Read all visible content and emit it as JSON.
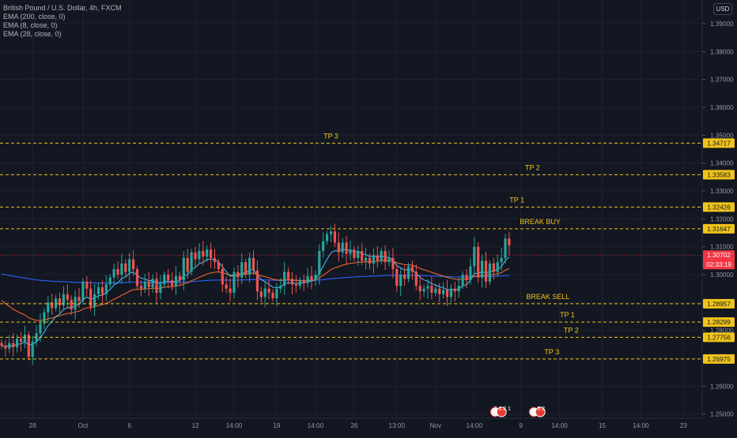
{
  "header": {
    "symbol": "British Pound / U.S. Dollar, 4h, FXCM",
    "indicators": [
      "EMA (200, close, 0)",
      "EMA (8, close, 0)",
      "EMA (28, close, 0)"
    ],
    "currency": "USD"
  },
  "colors": {
    "background": "#131722",
    "up_candle": "#26a69a",
    "down_candle": "#ef5350",
    "level_line": "#f0c419",
    "level_label": "#f0c419",
    "ema200": "#2962ff",
    "ema8": "#4fc3f7",
    "ema28": "#ff6d2d",
    "price_tag": "#f23645"
  },
  "chart_data": {
    "type": "candlestick",
    "ylim": [
      1.2485,
      1.3985
    ],
    "y_ticks": [
      "1.25000",
      "1.26000",
      "1.27000",
      "1.28000",
      "1.29000",
      "1.30000",
      "1.31000",
      "1.32000",
      "1.33000",
      "1.34000",
      "1.35000",
      "1.36000",
      "1.37000",
      "1.38000",
      "1.39000"
    ],
    "x_ticks": [
      {
        "label": "28",
        "idx": 8
      },
      {
        "label": "Oct",
        "idx": 21
      },
      {
        "label": "6",
        "idx": 33
      },
      {
        "label": "12",
        "idx": 50
      },
      {
        "label": "14:00",
        "idx": 60
      },
      {
        "label": "19",
        "idx": 71
      },
      {
        "label": "14:00",
        "idx": 81
      },
      {
        "label": "26",
        "idx": 91
      },
      {
        "label": "13:00",
        "idx": 102
      },
      {
        "label": "Nov",
        "idx": 112
      },
      {
        "label": "14:00",
        "idx": 122
      },
      {
        "label": "9",
        "idx": 134
      },
      {
        "label": "14:00",
        "idx": 144
      },
      {
        "label": "15",
        "idx": 155
      },
      {
        "label": "14:00",
        "idx": 165
      },
      {
        "label": "23",
        "idx": 176
      }
    ],
    "levels": [
      {
        "label": "TP 3",
        "value": 1.34717,
        "tag": "1.34717",
        "label_idx": 85
      },
      {
        "label": "TP 2",
        "value": 1.33583,
        "tag": "1.33583",
        "label_idx": 137
      },
      {
        "label": "TP 1",
        "value": 1.32426,
        "tag": "1.32426",
        "label_idx": 133
      },
      {
        "label": "BREAK BUY",
        "value": 1.31647,
        "tag": "1.31647",
        "label_idx": 139
      },
      {
        "label": "BREAK SELL",
        "value": 1.28957,
        "tag": "1.28957",
        "label_idx": 141
      },
      {
        "label": "TP 1",
        "value": 1.28299,
        "tag": "1.28299",
        "label_idx": 146
      },
      {
        "label": "TP 2",
        "value": 1.27756,
        "tag": "1.27756",
        "label_idx": 147
      },
      {
        "label": "TP 3",
        "value": 1.26975,
        "tag": "1.26975",
        "label_idx": 142
      }
    ],
    "current_price": {
      "value": 1.30702,
      "tag": "1.30702",
      "countdown": "02:33:19"
    },
    "events": [
      {
        "idx": 128,
        "text": "7 1 2 1"
      },
      {
        "idx": 138,
        "text": "5 2"
      }
    ],
    "close": [
      1.2745,
      1.2735,
      1.2755,
      1.274,
      1.277,
      1.276,
      1.2785,
      1.2705,
      1.276,
      1.279,
      1.2825,
      1.2865,
      1.29,
      1.288,
      1.2915,
      1.289,
      1.293,
      1.291,
      1.2875,
      1.292,
      1.2905,
      1.2975,
      1.295,
      1.2885,
      1.293,
      1.2955,
      1.293,
      1.2965,
      1.299,
      1.302,
      1.3,
      1.304,
      1.301,
      1.3055,
      1.302,
      1.296,
      1.295,
      1.2975,
      1.2955,
      1.2985,
      1.2935,
      1.2965,
      1.3,
      1.298,
      1.296,
      1.2995,
      1.298,
      1.306,
      1.301,
      1.308,
      1.3055,
      1.3085,
      1.3065,
      1.309,
      1.306,
      1.3045,
      1.302,
      1.2965,
      1.295,
      1.2935,
      1.301,
      1.299,
      1.3045,
      1.3,
      1.306,
      1.3015,
      1.294,
      1.292,
      1.295,
      1.2935,
      1.2915,
      1.295,
      1.296,
      1.301,
      1.2985,
      1.2965,
      1.296,
      1.298,
      1.297,
      1.2995,
      1.298,
      1.3,
      1.3085,
      1.312,
      1.3145,
      1.3155,
      1.3115,
      1.308,
      1.3115,
      1.3075,
      1.309,
      1.306,
      1.3085,
      1.305,
      1.306,
      1.304,
      1.307,
      1.305,
      1.3085,
      1.3045,
      1.306,
      1.302,
      1.296,
      1.3,
      1.2985,
      1.303,
      1.301,
      1.296,
      1.294,
      1.295,
      1.296,
      1.2935,
      1.295,
      1.293,
      1.2945,
      1.292,
      1.295,
      1.294,
      1.296,
      1.3,
      1.298,
      1.303,
      1.31,
      1.299,
      1.305,
      1.2975,
      1.304,
      1.301,
      1.3045,
      1.306,
      1.313,
      1.3105
    ]
  }
}
